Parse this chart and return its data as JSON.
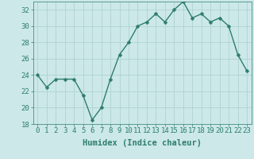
{
  "x": [
    0,
    1,
    2,
    3,
    4,
    5,
    6,
    7,
    8,
    9,
    10,
    11,
    12,
    13,
    14,
    15,
    16,
    17,
    18,
    19,
    20,
    21,
    22,
    23
  ],
  "y": [
    24,
    22.5,
    23.5,
    23.5,
    23.5,
    21.5,
    18.5,
    20,
    23.5,
    26.5,
    28,
    30,
    30.5,
    31.5,
    30.5,
    32,
    33,
    31,
    31.5,
    30.5,
    31,
    30,
    26.5,
    24.5
  ],
  "line_color": "#2e7d6e",
  "marker": "D",
  "marker_size": 2.5,
  "bg_color": "#cce8e8",
  "grid_color": "#aacfcf",
  "xlabel": "Humidex (Indice chaleur)",
  "xlabel_fontsize": 7.5,
  "tick_fontsize": 6.5,
  "ylim": [
    18,
    33
  ],
  "xlim": [
    -0.5,
    23.5
  ],
  "yticks": [
    18,
    20,
    22,
    24,
    26,
    28,
    30,
    32
  ],
  "xticks": [
    0,
    1,
    2,
    3,
    4,
    5,
    6,
    7,
    8,
    9,
    10,
    11,
    12,
    13,
    14,
    15,
    16,
    17,
    18,
    19,
    20,
    21,
    22,
    23
  ],
  "line_width": 1.0
}
